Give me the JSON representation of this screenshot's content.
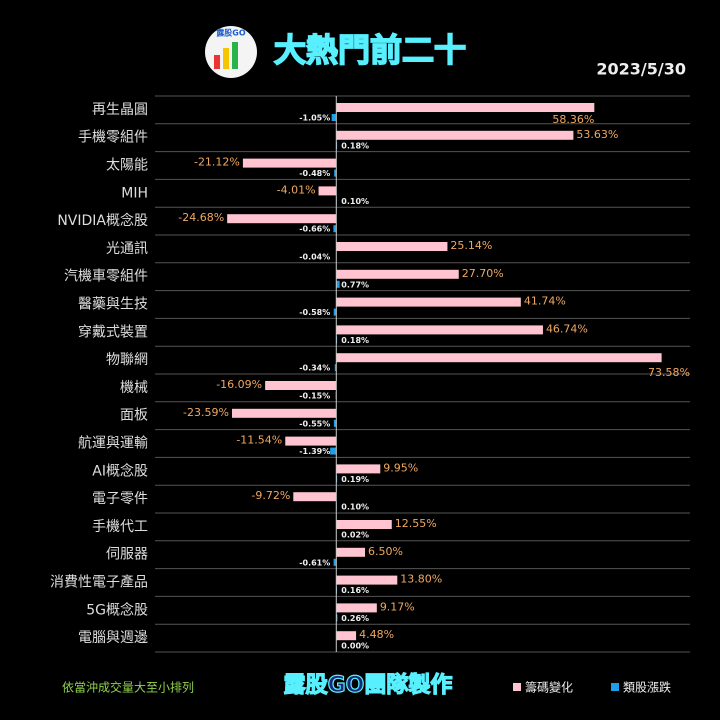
{
  "chart_data": {
    "type": "hbar",
    "title": "大熱門前二十",
    "date": "2023/5/30",
    "logo_text": "露股GO",
    "footnote": "依當沖成交量大至小排列",
    "credit": "露股GO團隊製作",
    "categories": [
      "再生晶圓",
      "手機零組件",
      "太陽能",
      "MIH",
      "NVIDIA概念股",
      "光通訊",
      "汽機車零組件",
      "醫藥與生技",
      "穿戴式裝置",
      "物聯網",
      "機械",
      "面板",
      "航運與運輸",
      "AI概念股",
      "電子零件",
      "手機代工",
      "伺服器",
      "消費性電子產品",
      "5G概念股",
      "電腦與週邊"
    ],
    "series": [
      {
        "name": "籌碼變化",
        "color": "#ffc4d0",
        "values": [
          58.36,
          53.63,
          -21.12,
          -4.01,
          -24.68,
          25.14,
          27.7,
          41.74,
          46.74,
          73.58,
          -16.09,
          -23.59,
          -11.54,
          9.95,
          -9.72,
          12.55,
          6.5,
          13.8,
          9.17,
          4.48
        ],
        "value_labels": [
          "58.36%",
          "53.63%",
          "-21.12%",
          "-4.01%",
          "-24.68%",
          "25.14%",
          "27.70%",
          "41.74%",
          "46.74%",
          "73.58%",
          "-16.09%",
          "-23.59%",
          "-11.54%",
          "9.95%",
          "-9.72%",
          "12.55%",
          "6.50%",
          "13.80%",
          "9.17%",
          "4.48%"
        ]
      },
      {
        "name": "類股漲跌",
        "color": "#1e9fe6",
        "values": [
          -1.05,
          0.18,
          -0.48,
          0.1,
          -0.66,
          -0.04,
          0.77,
          -0.58,
          0.18,
          -0.34,
          -0.15,
          -0.55,
          -1.39,
          0.19,
          0.1,
          0.02,
          -0.61,
          0.16,
          0.26,
          0.0
        ],
        "value_labels": [
          "-1.05%",
          "0.18%",
          "-0.48%",
          "0.10%",
          "-0.66%",
          "-0.04%",
          "0.77%",
          "-0.58%",
          "0.18%",
          "-0.34%",
          "-0.15%",
          "-0.55%",
          "-1.39%",
          "0.19%",
          "0.10%",
          "0.02%",
          "-0.61%",
          "0.16%",
          "0.26%",
          "0.00%"
        ]
      }
    ],
    "xlim": [
      -41,
      80
    ],
    "legend": "bottom-right"
  }
}
